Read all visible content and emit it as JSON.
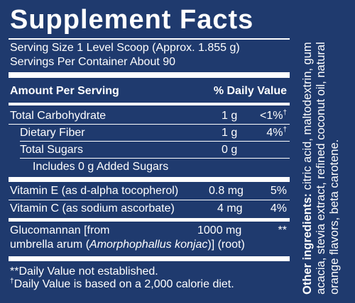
{
  "title": "Supplement Facts",
  "serving_size": "Serving Size 1 Level Scoop (Approx. 1.855 g)",
  "servings_per_container": "Servings Per Container About 90",
  "header": {
    "amount": "Amount Per Serving",
    "dv": "% Daily Value"
  },
  "rows": [
    {
      "name": "Total Carbohydrate",
      "amount": "1 g",
      "dv": "<1%",
      "dv_mark": "†"
    },
    {
      "name": "Dietary Fiber",
      "amount": "1 g",
      "dv": "4%",
      "dv_mark": "†"
    },
    {
      "name": "Total Sugars",
      "amount": "0 g",
      "dv": ""
    },
    {
      "name": "Includes 0 g Added Sugars",
      "amount": "",
      "dv": ""
    },
    {
      "name": "Vitamin E (as d-alpha tocopherol)",
      "amount": "0.8 mg",
      "dv": "5%"
    },
    {
      "name": "Vitamin C (as sodium ascorbate)",
      "amount": "4 mg",
      "dv": "4%"
    },
    {
      "name": "Glucomannan [from",
      "amount": "1000 mg",
      "dv": "**"
    }
  ],
  "glucomannan_line2": {
    "prefix": "umbrella arum (",
    "latin": "Amorphophallus konjac",
    "suffix": ")] (root)"
  },
  "footnotes": {
    "line1": "**Daily Value not established.",
    "line2_mark": "†",
    "line2": "Daily Value is based on a 2,000 calorie diet."
  },
  "other_ingredients": {
    "label": "Other ingredients:",
    "text": " citric acid, maltodextrin, gum acacia, stevia extract, refined coconut oil, natural orange flavors, beta carotene."
  },
  "colors": {
    "background": "#1f3a6e",
    "text": "#ffffff"
  }
}
